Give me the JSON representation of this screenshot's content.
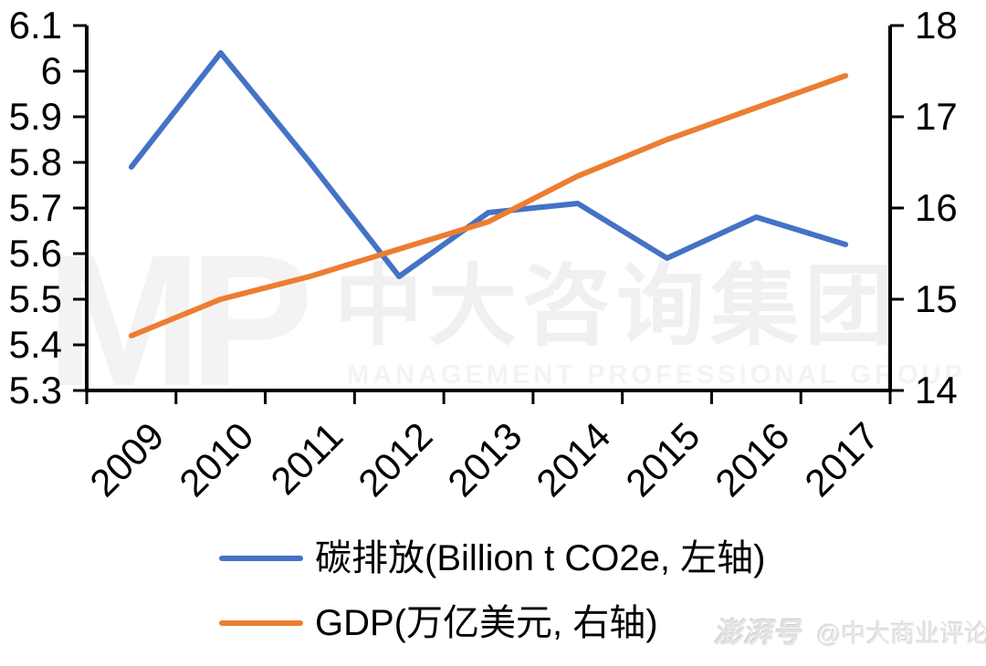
{
  "chart_data": {
    "type": "line",
    "categories": [
      "2009",
      "2010",
      "2011",
      "2012",
      "2013",
      "2014",
      "2015",
      "2016",
      "2017"
    ],
    "series": [
      {
        "name": "碳排放(Billion t CO2e, 左轴)",
        "axis": "left",
        "color": "#4472C4",
        "values": [
          5.79,
          6.04,
          5.8,
          5.55,
          5.69,
          5.71,
          5.59,
          5.68,
          5.62
        ]
      },
      {
        "name": "GDP(万亿美元, 右轴)",
        "axis": "right",
        "color": "#ED7D31",
        "values": [
          14.6,
          15.0,
          15.25,
          15.55,
          15.85,
          16.35,
          16.75,
          17.1,
          17.45
        ]
      }
    ],
    "left_axis": {
      "min": 5.3,
      "max": 6.1,
      "step": 0.1,
      "tick_labels": [
        "6.1",
        "6",
        "5.9",
        "5.8",
        "5.7",
        "5.6",
        "5.5",
        "5.4",
        "5.3"
      ]
    },
    "right_axis": {
      "min": 14,
      "max": 18,
      "step": 1,
      "tick_labels": [
        "18",
        "17",
        "16",
        "15",
        "14"
      ]
    },
    "title": "",
    "xlabel": "",
    "ylabel_left": "Billion t CO2e",
    "ylabel_right": "万亿美元",
    "grid": false,
    "legend_position": "bottom"
  },
  "legend": {
    "items": [
      {
        "label": "碳排放(Billion t CO2e, 左轴)",
        "color": "#4472C4"
      },
      {
        "label": "GDP(万亿美元, 右轴)",
        "color": "#ED7D31"
      }
    ]
  },
  "watermark": {
    "logo": "MP",
    "company": "中大咨询集团",
    "subtitle": "MANAGEMENT PROFESSIONAL GROUP"
  },
  "footer": {
    "brand": "澎湃号",
    "account": "@中大商业评论"
  },
  "colors": {
    "series_blue": "#4472C4",
    "series_orange": "#ED7D31",
    "axis": "#000000",
    "watermark_gray": "#F1F1F1"
  }
}
